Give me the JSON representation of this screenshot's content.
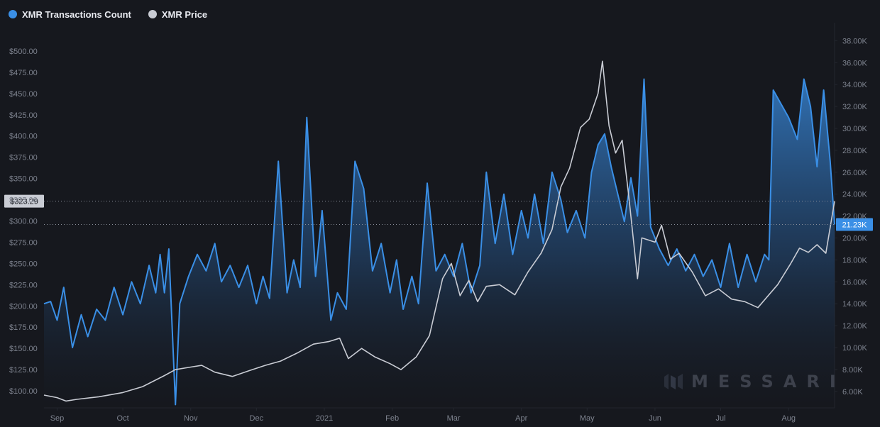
{
  "legend": {
    "series1_label": "XMR Transactions Count",
    "series2_label": "XMR Price"
  },
  "colors": {
    "background": "#16181e",
    "series1": "#3a8fe6",
    "series2": "#c9ccd4",
    "grid": "#23262e",
    "axis_text": "#7d828e"
  },
  "crosshair": {
    "price_label": "$323.29",
    "count_label": "21.23K",
    "price_value": 323.29,
    "count_value": 21230
  },
  "watermark": {
    "text": "MESSARI"
  },
  "chart_data": {
    "type": "area",
    "grid": false,
    "legend_position": "top-left",
    "x_ticks": [
      "Sep",
      "Oct",
      "Nov",
      "Dec",
      "2021",
      "Feb",
      "Mar",
      "Apr",
      "May",
      "Jun",
      "Jul",
      "Aug"
    ],
    "x_range": [
      "2020-08-26",
      "2021-08-22"
    ],
    "left_axis": {
      "series": "XMR Price",
      "range": [
        80,
        525
      ],
      "ticks": [
        "$100.00",
        "$125.00",
        "$150.00",
        "$175.00",
        "$200.00",
        "$225.00",
        "$250.00",
        "$275.00",
        "$300.00",
        "$325.00",
        "$350.00",
        "$375.00",
        "$400.00",
        "$425.00",
        "$450.00",
        "$475.00",
        "$500.00"
      ]
    },
    "right_axis": {
      "series": "XMR Transactions Count",
      "range": [
        4500,
        39000
      ],
      "ticks": [
        "6.00K",
        "8.00K",
        "10.00K",
        "12.00K",
        "14.00K",
        "16.00K",
        "18.00K",
        "20.00K",
        "22.00K",
        "24.00K",
        "26.00K",
        "28.00K",
        "30.00K",
        "32.00K",
        "34.00K",
        "36.00K",
        "38.00K"
      ]
    },
    "series": [
      {
        "name": "XMR Transactions Count",
        "axis": "right",
        "style": "area",
        "points": [
          [
            "2020-08-26",
            14000
          ],
          [
            "2020-08-29",
            14200
          ],
          [
            "2020-09-01",
            12500
          ],
          [
            "2020-09-04",
            15500
          ],
          [
            "2020-09-08",
            10000
          ],
          [
            "2020-09-12",
            13000
          ],
          [
            "2020-09-15",
            11000
          ],
          [
            "2020-09-19",
            13500
          ],
          [
            "2020-09-23",
            12500
          ],
          [
            "2020-09-27",
            15500
          ],
          [
            "2020-10-01",
            13000
          ],
          [
            "2020-10-05",
            16000
          ],
          [
            "2020-10-09",
            14000
          ],
          [
            "2020-10-13",
            17500
          ],
          [
            "2020-10-16",
            15000
          ],
          [
            "2020-10-18",
            18500
          ],
          [
            "2020-10-20",
            15000
          ],
          [
            "2020-10-22",
            19000
          ],
          [
            "2020-10-25",
            4800
          ],
          [
            "2020-10-27",
            14000
          ],
          [
            "2020-10-31",
            16500
          ],
          [
            "2020-11-04",
            18500
          ],
          [
            "2020-11-08",
            17000
          ],
          [
            "2020-11-12",
            19500
          ],
          [
            "2020-11-15",
            16000
          ],
          [
            "2020-11-19",
            17500
          ],
          [
            "2020-11-23",
            15500
          ],
          [
            "2020-11-27",
            17500
          ],
          [
            "2020-12-01",
            14000
          ],
          [
            "2020-12-04",
            16500
          ],
          [
            "2020-12-07",
            14500
          ],
          [
            "2020-12-11",
            27000
          ],
          [
            "2020-12-15",
            15000
          ],
          [
            "2020-12-18",
            18000
          ],
          [
            "2020-12-21",
            15500
          ],
          [
            "2020-12-24",
            31000
          ],
          [
            "2020-12-28",
            16500
          ],
          [
            "2020-12-31",
            22500
          ],
          [
            "2021-01-04",
            12500
          ],
          [
            "2021-01-07",
            15000
          ],
          [
            "2021-01-11",
            13500
          ],
          [
            "2021-01-15",
            27000
          ],
          [
            "2021-01-19",
            24500
          ],
          [
            "2021-01-23",
            17000
          ],
          [
            "2021-01-27",
            19500
          ],
          [
            "2021-01-31",
            15000
          ],
          [
            "2021-02-03",
            18000
          ],
          [
            "2021-02-06",
            13500
          ],
          [
            "2021-02-10",
            16500
          ],
          [
            "2021-02-13",
            14000
          ],
          [
            "2021-02-17",
            25000
          ],
          [
            "2021-02-21",
            17000
          ],
          [
            "2021-02-25",
            18500
          ],
          [
            "2021-03-01",
            16500
          ],
          [
            "2021-03-05",
            19500
          ],
          [
            "2021-03-09",
            15000
          ],
          [
            "2021-03-13",
            17500
          ],
          [
            "2021-03-16",
            26000
          ],
          [
            "2021-03-20",
            19500
          ],
          [
            "2021-03-24",
            24000
          ],
          [
            "2021-03-28",
            18500
          ],
          [
            "2021-04-01",
            22500
          ],
          [
            "2021-04-04",
            20000
          ],
          [
            "2021-04-07",
            24000
          ],
          [
            "2021-04-11",
            19500
          ],
          [
            "2021-04-15",
            26000
          ],
          [
            "2021-04-19",
            23500
          ],
          [
            "2021-04-22",
            20500
          ],
          [
            "2021-04-26",
            22500
          ],
          [
            "2021-04-30",
            20000
          ],
          [
            "2021-05-03",
            26000
          ],
          [
            "2021-05-06",
            28500
          ],
          [
            "2021-05-09",
            29500
          ],
          [
            "2021-05-12",
            26500
          ],
          [
            "2021-05-15",
            24000
          ],
          [
            "2021-05-18",
            21500
          ],
          [
            "2021-05-21",
            25500
          ],
          [
            "2021-05-24",
            22000
          ],
          [
            "2021-05-27",
            34500
          ],
          [
            "2021-05-30",
            21000
          ],
          [
            "2021-06-03",
            19000
          ],
          [
            "2021-06-07",
            17500
          ],
          [
            "2021-06-11",
            19000
          ],
          [
            "2021-06-15",
            17000
          ],
          [
            "2021-06-19",
            18500
          ],
          [
            "2021-06-23",
            16500
          ],
          [
            "2021-06-27",
            18000
          ],
          [
            "2021-07-01",
            15500
          ],
          [
            "2021-07-05",
            19500
          ],
          [
            "2021-07-09",
            15500
          ],
          [
            "2021-07-13",
            18500
          ],
          [
            "2021-07-17",
            16000
          ],
          [
            "2021-07-21",
            18500
          ],
          [
            "2021-07-23",
            18000
          ],
          [
            "2021-07-25",
            33500
          ],
          [
            "2021-08-01",
            31000
          ],
          [
            "2021-08-05",
            29000
          ],
          [
            "2021-08-08",
            34500
          ],
          [
            "2021-08-11",
            32000
          ],
          [
            "2021-08-14",
            26500
          ],
          [
            "2021-08-17",
            33500
          ],
          [
            "2021-08-20",
            27000
          ],
          [
            "2021-08-22",
            21230
          ]
        ]
      },
      {
        "name": "XMR Price",
        "axis": "left",
        "style": "line",
        "points": [
          [
            "2020-08-26",
            95
          ],
          [
            "2020-09-01",
            92
          ],
          [
            "2020-09-05",
            88
          ],
          [
            "2020-09-10",
            90
          ],
          [
            "2020-09-20",
            93
          ],
          [
            "2020-10-01",
            98
          ],
          [
            "2020-10-10",
            105
          ],
          [
            "2020-10-20",
            118
          ],
          [
            "2020-10-25",
            125
          ],
          [
            "2020-11-01",
            128
          ],
          [
            "2020-11-06",
            130
          ],
          [
            "2020-11-12",
            122
          ],
          [
            "2020-11-20",
            117
          ],
          [
            "2020-11-28",
            124
          ],
          [
            "2020-12-05",
            130
          ],
          [
            "2020-12-12",
            135
          ],
          [
            "2020-12-20",
            145
          ],
          [
            "2020-12-27",
            155
          ],
          [
            "2021-01-03",
            158
          ],
          [
            "2021-01-08",
            162
          ],
          [
            "2021-01-12",
            138
          ],
          [
            "2021-01-18",
            150
          ],
          [
            "2021-01-24",
            140
          ],
          [
            "2021-01-31",
            132
          ],
          [
            "2021-02-05",
            125
          ],
          [
            "2021-02-12",
            140
          ],
          [
            "2021-02-18",
            165
          ],
          [
            "2021-02-24",
            232
          ],
          [
            "2021-02-28",
            250
          ],
          [
            "2021-03-04",
            212
          ],
          [
            "2021-03-08",
            230
          ],
          [
            "2021-03-12",
            205
          ],
          [
            "2021-03-16",
            223
          ],
          [
            "2021-03-22",
            225
          ],
          [
            "2021-03-29",
            213
          ],
          [
            "2021-04-04",
            240
          ],
          [
            "2021-04-10",
            262
          ],
          [
            "2021-04-15",
            290
          ],
          [
            "2021-04-19",
            340
          ],
          [
            "2021-04-23",
            362
          ],
          [
            "2021-04-28",
            410
          ],
          [
            "2021-05-02",
            420
          ],
          [
            "2021-05-06",
            450
          ],
          [
            "2021-05-08",
            488
          ],
          [
            "2021-05-11",
            412
          ],
          [
            "2021-05-14",
            380
          ],
          [
            "2021-05-17",
            395
          ],
          [
            "2021-05-20",
            330
          ],
          [
            "2021-05-24",
            232
          ],
          [
            "2021-05-26",
            280
          ],
          [
            "2021-06-01",
            275
          ],
          [
            "2021-06-04",
            295
          ],
          [
            "2021-06-08",
            255
          ],
          [
            "2021-06-12",
            262
          ],
          [
            "2021-06-18",
            240
          ],
          [
            "2021-06-24",
            212
          ],
          [
            "2021-06-30",
            220
          ],
          [
            "2021-07-06",
            208
          ],
          [
            "2021-07-12",
            205
          ],
          [
            "2021-07-18",
            198
          ],
          [
            "2021-07-22",
            210
          ],
          [
            "2021-07-27",
            225
          ],
          [
            "2021-08-02",
            250
          ],
          [
            "2021-08-06",
            268
          ],
          [
            "2021-08-10",
            263
          ],
          [
            "2021-08-14",
            272
          ],
          [
            "2021-08-18",
            262
          ],
          [
            "2021-08-22",
            323.29
          ]
        ]
      }
    ]
  }
}
